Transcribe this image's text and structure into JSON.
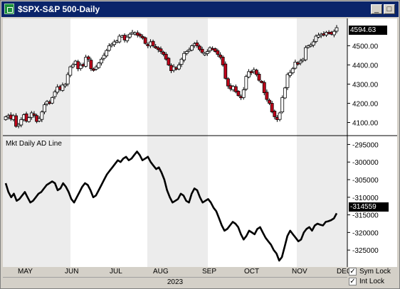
{
  "window": {
    "title": "$SPX-S&P 500-Daily",
    "minimize_glyph": "_",
    "maximize_glyph": "□",
    "close_glyph": "×"
  },
  "price_panel": {
    "last_value_label": "4594.63",
    "y_ticks": [
      "4500.00",
      "4400.00",
      "4300.00",
      "4200.00",
      "4100.00"
    ]
  },
  "indicator_panel": {
    "title": "Mkt Daily AD Line",
    "last_value_label": "-314559",
    "y_ticks": [
      "-295000",
      "-300000",
      "-305000",
      "-310000",
      "-315000",
      "-320000",
      "-325000"
    ]
  },
  "x_axis": {
    "months": [
      "MAY",
      "JUN",
      "JUL",
      "AUG",
      "SEP",
      "OCT",
      "NOV",
      "DEC"
    ],
    "year": "2023"
  },
  "locks": [
    {
      "label": "Sym Lock",
      "checked": true
    },
    {
      "label": "Int Lock",
      "checked": true
    }
  ],
  "colors": {
    "up_candle": "#ffffff",
    "down_candle": "#c0001a",
    "line": "#000000",
    "shade_band": "#ececec"
  },
  "chart_data": [
    {
      "type": "candlestick",
      "title": "$SPX-S&P 500-Daily",
      "ylim": [
        4050,
        4620
      ],
      "close": [
        4130,
        4136,
        4119,
        4135,
        4080,
        4090,
        4115,
        4140,
        4107,
        4125,
        4150,
        4137,
        4105,
        4120,
        4155,
        4192,
        4210,
        4200,
        4230,
        4260,
        4285,
        4272,
        4295,
        4298,
        4350,
        4390,
        4400,
        4420,
        4380,
        4398,
        4395,
        4440,
        4430,
        4380,
        4375,
        4390,
        4410,
        4430,
        4450,
        4475,
        4500,
        4508,
        4520,
        4525,
        4550,
        4552,
        4530,
        4545,
        4560,
        4570,
        4567,
        4555,
        4550,
        4540,
        4512,
        4500,
        4520,
        4500,
        4490,
        4480,
        4470,
        4455,
        4430,
        4400,
        4370,
        4390,
        4380,
        4400,
        4430,
        4460,
        4470,
        4480,
        4500,
        4510,
        4500,
        4480,
        4465,
        4460,
        4470,
        4490,
        4485,
        4470,
        4455,
        4440,
        4400,
        4330,
        4290,
        4275,
        4288,
        4260,
        4240,
        4230,
        4270,
        4340,
        4365,
        4360,
        4375,
        4350,
        4320,
        4310,
        4255,
        4220,
        4200,
        4155,
        4130,
        4115,
        4150,
        4230,
        4280,
        4350,
        4360,
        4380,
        4415,
        4410,
        4420,
        4430,
        4490,
        4500,
        4505,
        4520,
        4550,
        4555,
        4560,
        4560,
        4570,
        4567,
        4560,
        4575,
        4594
      ]
    },
    {
      "type": "line",
      "title": "Mkt Daily AD Line",
      "ylim": [
        -329000,
        -293500
      ],
      "values": [
        -306000,
        -308500,
        -310000,
        -309000,
        -311000,
        -310500,
        -309500,
        -308500,
        -310000,
        -311500,
        -311000,
        -310000,
        -309000,
        -308500,
        -307500,
        -306500,
        -306000,
        -305500,
        -306000,
        -308000,
        -307500,
        -306000,
        -307000,
        -308500,
        -310500,
        -311500,
        -310000,
        -308500,
        -307000,
        -306000,
        -306500,
        -308000,
        -310000,
        -309500,
        -308000,
        -306500,
        -305000,
        -303500,
        -302500,
        -301500,
        -300500,
        -299500,
        -300000,
        -299000,
        -298500,
        -299500,
        -299000,
        -298000,
        -297000,
        -298000,
        -299500,
        -299000,
        -298500,
        -300000,
        -301000,
        -302000,
        -301500,
        -303000,
        -305000,
        -308000,
        -310000,
        -311500,
        -311000,
        -310500,
        -309000,
        -309500,
        -311000,
        -311500,
        -309000,
        -307500,
        -308000,
        -310000,
        -311500,
        -311000,
        -310500,
        -311500,
        -313000,
        -314000,
        -316000,
        -318000,
        -319500,
        -319000,
        -318000,
        -317000,
        -317500,
        -318500,
        -320500,
        -322000,
        -321000,
        -319500,
        -320000,
        -320500,
        -319000,
        -318500,
        -320000,
        -321500,
        -322500,
        -323500,
        -325000,
        -326000,
        -328000,
        -327000,
        -324000,
        -321000,
        -319500,
        -320500,
        -321500,
        -322500,
        -322000,
        -320000,
        -319000,
        -318500,
        -319500,
        -318000,
        -317500,
        -317800,
        -318000,
        -317000,
        -316800,
        -316500,
        -316000,
        -314559
      ]
    }
  ]
}
